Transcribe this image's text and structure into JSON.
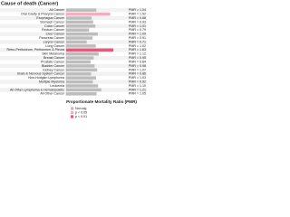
{
  "chart_data": {
    "type": "barh",
    "title": "Cause of death (Cancer)",
    "xlabel": "Proportionate Mortality Ratio (PMR)",
    "categories": [
      "All Cancer",
      "Oral Cavity & Pharynx Cancer",
      "Esophagus Cancer",
      "Stomach Cancer",
      "Colon Cancer",
      "Rectum Cancer",
      "Liver Cancer",
      "Pancreas Cancer",
      "Larynx Cancer",
      "Lung Cancer",
      "Retro-Peritoneum, Peritoneum & Pleura",
      "Skin Melanoma",
      "Breast Cancer",
      "Prostate Cancer",
      "Bladder Cancer",
      "Kidney Cancer",
      "Brain & Nervous System Cancer",
      "Non-Hodgkin Lymphoma",
      "Multiple Myeloma",
      "Leukemia",
      "All Other Lymphoma & Hematopoietic",
      "All Other Cancer"
    ],
    "values": [
      1.04,
      1.52,
      0.88,
      0.93,
      1.01,
      0.79,
      1.09,
      0.91,
      0.71,
      1.02,
      1.63,
      1.12,
      0.95,
      0.84,
      0.98,
      1.07,
      0.86,
      1.03,
      0.92,
      1.1,
      1.21,
      1.05
    ],
    "value_labels": [
      "PMR = 1.04",
      "PMR = 1.52",
      "PMR = 0.88",
      "PMR = 0.93",
      "PMR = 1.01",
      "PMR = 0.79",
      "PMR = 1.09",
      "PMR = 0.91",
      "PMR = 0.71",
      "PMR = 1.02",
      "PMR = 1.63",
      "PMR = 1.12",
      "PMR = 0.95",
      "PMR = 0.84",
      "PMR = 0.98",
      "PMR = 1.07",
      "PMR = 0.86",
      "PMR = 1.03",
      "PMR = 0.92",
      "PMR = 1.10",
      "PMR = 1.21",
      "PMR = 1.05"
    ],
    "significance": [
      0,
      1,
      0,
      0,
      0,
      0,
      0,
      0,
      0,
      0,
      2,
      0,
      0,
      0,
      0,
      0,
      0,
      0,
      0,
      0,
      0,
      0
    ],
    "legend": [
      {
        "name": "Non-sig",
        "color": "#bdbdbd"
      },
      {
        "name": "p < 0.05",
        "color": "#f5aebf"
      },
      {
        "name": "p < 0.01",
        "color": "#ee5577"
      }
    ],
    "xlim": [
      0,
      2
    ]
  }
}
